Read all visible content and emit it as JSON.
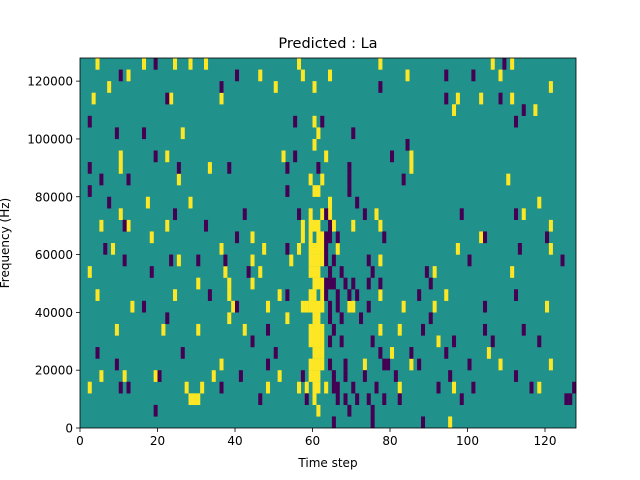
{
  "chart_data": {
    "type": "heatmap",
    "title": "Predicted : La",
    "xlabel": "Time step",
    "ylabel": "Frequency (Hz)",
    "xlim": [
      0,
      128
    ],
    "ylim": [
      0,
      128000
    ],
    "xticks": [
      0,
      20,
      40,
      60,
      80,
      100,
      120
    ],
    "yticks": [
      0,
      20000,
      40000,
      60000,
      80000,
      100000,
      120000
    ],
    "xtick_labels": [
      "0",
      "20",
      "40",
      "60",
      "80",
      "100",
      "120"
    ],
    "ytick_labels": [
      "0",
      "20000",
      "40000",
      "60000",
      "80000",
      "100000",
      "120000"
    ],
    "grid": false,
    "legend": "none",
    "colors": {
      "background": "#21918c",
      "low": "#440154",
      "high": "#fde725"
    },
    "cell_height_hz": 4000,
    "cells_high": [
      [
        4,
        124000
      ],
      [
        12,
        120000
      ],
      [
        16,
        124000
      ],
      [
        24,
        124000
      ],
      [
        28,
        124000
      ],
      [
        32,
        124000
      ],
      [
        46,
        120000
      ],
      [
        56,
        124000
      ],
      [
        57,
        120000
      ],
      [
        64,
        120000
      ],
      [
        77,
        124000
      ],
      [
        84,
        120000
      ],
      [
        106,
        124000
      ],
      [
        108,
        120000
      ],
      [
        111,
        124000
      ],
      [
        3,
        112000
      ],
      [
        7,
        116000
      ],
      [
        23,
        112000
      ],
      [
        36,
        112000
      ],
      [
        50,
        116000
      ],
      [
        60,
        116000
      ],
      [
        97,
        112000
      ],
      [
        103,
        112000
      ],
      [
        111,
        112000
      ],
      [
        121,
        116000
      ],
      [
        117,
        108000
      ],
      [
        96,
        108000
      ],
      [
        26,
        100000
      ],
      [
        60,
        104000
      ],
      [
        61,
        100000
      ],
      [
        60,
        96000
      ],
      [
        10,
        92000
      ],
      [
        10,
        88000
      ],
      [
        22,
        92000
      ],
      [
        52,
        92000
      ],
      [
        63,
        92000
      ],
      [
        85,
        92000
      ],
      [
        85,
        88000
      ],
      [
        25,
        84000
      ],
      [
        33,
        88000
      ],
      [
        59,
        84000
      ],
      [
        60,
        80000
      ],
      [
        61,
        80000
      ],
      [
        62,
        84000
      ],
      [
        17,
        76000
      ],
      [
        28,
        76000
      ],
      [
        59,
        72000
      ],
      [
        62,
        72000
      ],
      [
        64,
        76000
      ],
      [
        64,
        72000
      ],
      [
        76,
        72000
      ],
      [
        110,
        84000
      ],
      [
        114,
        72000
      ],
      [
        118,
        76000
      ],
      [
        5,
        68000
      ],
      [
        10,
        72000
      ],
      [
        12,
        68000
      ],
      [
        22,
        68000
      ],
      [
        57,
        68000
      ],
      [
        57,
        64000
      ],
      [
        59,
        68000
      ],
      [
        59,
        64000
      ],
      [
        60,
        68000
      ],
      [
        61,
        68000
      ],
      [
        61,
        64000
      ],
      [
        62,
        64000
      ],
      [
        65,
        68000
      ],
      [
        70,
        68000
      ],
      [
        77,
        68000
      ],
      [
        103,
        64000
      ],
      [
        121,
        68000
      ],
      [
        2,
        52000
      ],
      [
        8,
        60000
      ],
      [
        18,
        64000
      ],
      [
        25,
        56000
      ],
      [
        36,
        60000
      ],
      [
        37,
        52000
      ],
      [
        44,
        64000
      ],
      [
        44,
        56000
      ],
      [
        46,
        52000
      ],
      [
        47,
        60000
      ],
      [
        54,
        56000
      ],
      [
        56,
        60000
      ],
      [
        59,
        60000
      ],
      [
        59,
        56000
      ],
      [
        59,
        52000
      ],
      [
        60,
        60000
      ],
      [
        60,
        56000
      ],
      [
        60,
        52000
      ],
      [
        60,
        48000
      ],
      [
        61,
        60000
      ],
      [
        61,
        56000
      ],
      [
        61,
        52000
      ],
      [
        61,
        48000
      ],
      [
        62,
        60000
      ],
      [
        62,
        56000
      ],
      [
        62,
        48000
      ],
      [
        66,
        60000
      ],
      [
        77,
        56000
      ],
      [
        91,
        52000
      ],
      [
        97,
        60000
      ],
      [
        111,
        52000
      ],
      [
        121,
        60000
      ],
      [
        4,
        44000
      ],
      [
        13,
        40000
      ],
      [
        24,
        44000
      ],
      [
        30,
        48000
      ],
      [
        38,
        48000
      ],
      [
        38,
        44000
      ],
      [
        39,
        40000
      ],
      [
        44,
        48000
      ],
      [
        48,
        40000
      ],
      [
        51,
        44000
      ],
      [
        57,
        40000
      ],
      [
        58,
        40000
      ],
      [
        59,
        44000
      ],
      [
        59,
        40000
      ],
      [
        60,
        44000
      ],
      [
        60,
        40000
      ],
      [
        60,
        36000
      ],
      [
        61,
        40000
      ],
      [
        61,
        36000
      ],
      [
        62,
        44000
      ],
      [
        62,
        40000
      ],
      [
        62,
        32000
      ],
      [
        69,
        40000
      ],
      [
        70,
        40000
      ],
      [
        77,
        44000
      ],
      [
        83,
        40000
      ],
      [
        91,
        40000
      ],
      [
        94,
        44000
      ],
      [
        120,
        40000
      ],
      [
        9,
        32000
      ],
      [
        21,
        32000
      ],
      [
        30,
        32000
      ],
      [
        38,
        36000
      ],
      [
        42,
        32000
      ],
      [
        53,
        36000
      ],
      [
        59,
        32000
      ],
      [
        59,
        28000
      ],
      [
        60,
        32000
      ],
      [
        60,
        28000
      ],
      [
        60,
        24000
      ],
      [
        61,
        32000
      ],
      [
        61,
        28000
      ],
      [
        61,
        24000
      ],
      [
        62,
        28000
      ],
      [
        62,
        24000
      ],
      [
        77,
        32000
      ],
      [
        80,
        24000
      ],
      [
        82,
        32000
      ],
      [
        92,
        28000
      ],
      [
        105,
        24000
      ],
      [
        121,
        20000
      ],
      [
        2,
        12000
      ],
      [
        5,
        16000
      ],
      [
        11,
        16000
      ],
      [
        19,
        16000
      ],
      [
        27,
        12000
      ],
      [
        28,
        8000
      ],
      [
        29,
        8000
      ],
      [
        30,
        8000
      ],
      [
        31,
        12000
      ],
      [
        34,
        16000
      ],
      [
        36,
        20000
      ],
      [
        48,
        12000
      ],
      [
        51,
        16000
      ],
      [
        56,
        12000
      ],
      [
        58,
        12000
      ],
      [
        59,
        20000
      ],
      [
        59,
        16000
      ],
      [
        60,
        20000
      ],
      [
        60,
        16000
      ],
      [
        60,
        12000
      ],
      [
        60,
        8000
      ],
      [
        61,
        20000
      ],
      [
        61,
        16000
      ],
      [
        61,
        12000
      ],
      [
        61,
        4000
      ],
      [
        62,
        20000
      ],
      [
        63,
        12000
      ],
      [
        73,
        20000
      ],
      [
        82,
        12000
      ],
      [
        85,
        20000
      ],
      [
        96,
        12000
      ],
      [
        108,
        20000
      ],
      [
        118,
        12000
      ],
      [
        95,
        0
      ]
    ],
    "cells_low": [
      [
        10,
        120000
      ],
      [
        19,
        124000
      ],
      [
        40,
        120000
      ],
      [
        94,
        120000
      ],
      [
        101,
        120000
      ],
      [
        109,
        124000
      ],
      [
        22,
        112000
      ],
      [
        36,
        116000
      ],
      [
        77,
        116000
      ],
      [
        94,
        112000
      ],
      [
        108,
        112000
      ],
      [
        114,
        108000
      ],
      [
        112,
        104000
      ],
      [
        2,
        104000
      ],
      [
        9,
        100000
      ],
      [
        16,
        100000
      ],
      [
        55,
        104000
      ],
      [
        62,
        104000
      ],
      [
        70,
        100000
      ],
      [
        84,
        96000
      ],
      [
        12,
        84000
      ],
      [
        19,
        92000
      ],
      [
        25,
        88000
      ],
      [
        38,
        88000
      ],
      [
        53,
        88000
      ],
      [
        55,
        92000
      ],
      [
        61,
        88000
      ],
      [
        69,
        88000
      ],
      [
        69,
        84000
      ],
      [
        69,
        80000
      ],
      [
        71,
        76000
      ],
      [
        73,
        72000
      ],
      [
        80,
        92000
      ],
      [
        83,
        84000
      ],
      [
        98,
        72000
      ],
      [
        112,
        72000
      ],
      [
        120,
        64000
      ],
      [
        2,
        88000
      ],
      [
        2,
        80000
      ],
      [
        5,
        84000
      ],
      [
        7,
        76000
      ],
      [
        11,
        68000
      ],
      [
        24,
        72000
      ],
      [
        32,
        68000
      ],
      [
        40,
        64000
      ],
      [
        42,
        72000
      ],
      [
        53,
        80000
      ],
      [
        56,
        72000
      ],
      [
        63,
        72000
      ],
      [
        63,
        64000
      ],
      [
        64,
        68000
      ],
      [
        64,
        64000
      ],
      [
        65,
        56000
      ],
      [
        66,
        64000
      ],
      [
        67,
        52000
      ],
      [
        70,
        48000
      ],
      [
        74,
        56000
      ],
      [
        75,
        52000
      ],
      [
        78,
        64000
      ],
      [
        89,
        52000
      ],
      [
        100,
        56000
      ],
      [
        104,
        64000
      ],
      [
        113,
        60000
      ],
      [
        124,
        56000
      ],
      [
        6,
        60000
      ],
      [
        11,
        56000
      ],
      [
        18,
        52000
      ],
      [
        23,
        56000
      ],
      [
        30,
        56000
      ],
      [
        37,
        56000
      ],
      [
        43,
        52000
      ],
      [
        53,
        60000
      ],
      [
        63,
        60000
      ],
      [
        63,
        56000
      ],
      [
        63,
        48000
      ],
      [
        64,
        52000
      ],
      [
        64,
        48000
      ],
      [
        65,
        48000
      ],
      [
        66,
        44000
      ],
      [
        66,
        40000
      ],
      [
        68,
        48000
      ],
      [
        69,
        44000
      ],
      [
        71,
        44000
      ],
      [
        74,
        48000
      ],
      [
        77,
        48000
      ],
      [
        87,
        44000
      ],
      [
        90,
        48000
      ],
      [
        90,
        36000
      ],
      [
        104,
        40000
      ],
      [
        112,
        44000
      ],
      [
        114,
        32000
      ],
      [
        118,
        28000
      ],
      [
        16,
        40000
      ],
      [
        22,
        36000
      ],
      [
        33,
        44000
      ],
      [
        40,
        40000
      ],
      [
        44,
        28000
      ],
      [
        48,
        32000
      ],
      [
        53,
        44000
      ],
      [
        63,
        44000
      ],
      [
        64,
        40000
      ],
      [
        64,
        36000
      ],
      [
        65,
        32000
      ],
      [
        67,
        36000
      ],
      [
        67,
        28000
      ],
      [
        68,
        20000
      ],
      [
        68,
        16000
      ],
      [
        72,
        36000
      ],
      [
        74,
        40000
      ],
      [
        75,
        28000
      ],
      [
        77,
        24000
      ],
      [
        78,
        20000
      ],
      [
        85,
        24000
      ],
      [
        88,
        32000
      ],
      [
        94,
        24000
      ],
      [
        96,
        28000
      ],
      [
        100,
        20000
      ],
      [
        104,
        32000
      ],
      [
        106,
        28000
      ],
      [
        4,
        24000
      ],
      [
        9,
        20000
      ],
      [
        10,
        12000
      ],
      [
        12,
        12000
      ],
      [
        20,
        16000
      ],
      [
        26,
        24000
      ],
      [
        36,
        12000
      ],
      [
        41,
        16000
      ],
      [
        48,
        20000
      ],
      [
        50,
        24000
      ],
      [
        57,
        16000
      ],
      [
        64,
        28000
      ],
      [
        64,
        20000
      ],
      [
        65,
        16000
      ],
      [
        65,
        12000
      ],
      [
        66,
        12000
      ],
      [
        66,
        8000
      ],
      [
        68,
        8000
      ],
      [
        69,
        4000
      ],
      [
        70,
        12000
      ],
      [
        73,
        16000
      ],
      [
        74,
        8000
      ],
      [
        75,
        4000
      ],
      [
        76,
        12000
      ],
      [
        78,
        8000
      ],
      [
        79,
        20000
      ],
      [
        81,
        16000
      ],
      [
        87,
        20000
      ],
      [
        92,
        12000
      ],
      [
        95,
        16000
      ],
      [
        98,
        8000
      ],
      [
        101,
        12000
      ],
      [
        112,
        16000
      ],
      [
        116,
        12000
      ],
      [
        125,
        8000
      ],
      [
        126,
        8000
      ],
      [
        127,
        12000
      ],
      [
        19,
        4000
      ],
      [
        46,
        8000
      ],
      [
        58,
        8000
      ],
      [
        65,
        0
      ],
      [
        71,
        8000
      ],
      [
        75,
        0
      ],
      [
        82,
        8000
      ],
      [
        88,
        0
      ]
    ]
  }
}
